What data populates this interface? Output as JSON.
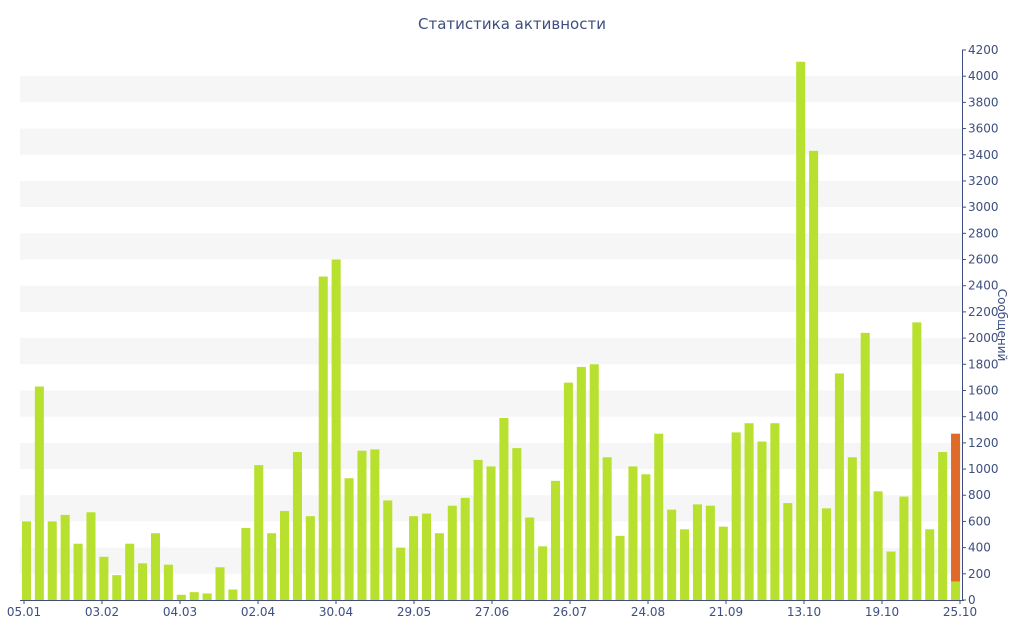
{
  "chart_data": {
    "type": "bar",
    "title": "Статистика активности",
    "ylabel": "Сообщений",
    "xlabel": "",
    "ylim": [
      0,
      4200
    ],
    "yticks": [
      0,
      200,
      400,
      600,
      800,
      1000,
      1200,
      1400,
      1600,
      1800,
      2000,
      2200,
      2400,
      2600,
      2800,
      3000,
      3200,
      3400,
      3600,
      3800,
      4000,
      4200
    ],
    "x_tick_labels": [
      "05.01",
      "03.02",
      "04.03",
      "02.04",
      "30.04",
      "29.05",
      "27.06",
      "26.07",
      "24.08",
      "21.09",
      "13.10",
      "19.10",
      "25.10"
    ],
    "grid": "alternating horizontal bands",
    "legend": "none",
    "colors": {
      "bar": "#b8e02e",
      "highlight": "#e06a2a",
      "text": "#3e4f7f",
      "band": "#f6f6f6"
    },
    "values": [
      600,
      1630,
      600,
      650,
      430,
      670,
      330,
      190,
      430,
      280,
      510,
      270,
      40,
      60,
      50,
      250,
      80,
      550,
      1030,
      510,
      680,
      1130,
      640,
      2470,
      2600,
      930,
      1140,
      1150,
      760,
      400,
      640,
      660,
      510,
      720,
      780,
      1070,
      1020,
      1390,
      1160,
      630,
      410,
      910,
      1660,
      1780,
      1800,
      1090,
      490,
      1020,
      960,
      1270,
      690,
      540,
      730,
      720,
      560,
      1280,
      1350,
      1210,
      1350,
      740,
      4110,
      3430,
      700,
      1730,
      1090,
      2040,
      830,
      370,
      790,
      2120,
      540,
      1130,
      1270
    ],
    "last_bar_split": {
      "base": 140,
      "top": 1270
    }
  }
}
